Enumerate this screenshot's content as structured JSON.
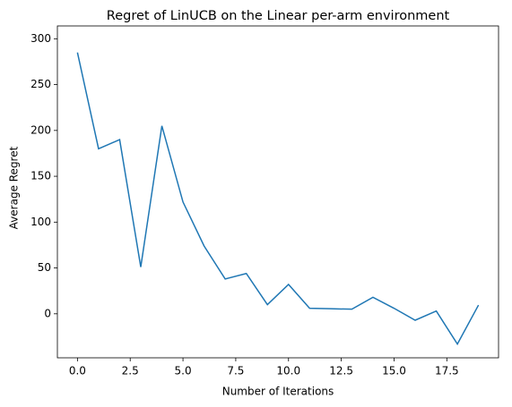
{
  "chart_data": {
    "type": "line",
    "title": "Regret of LinUCB on the Linear per-arm environment",
    "xlabel": "Number of Iterations",
    "ylabel": "Average Regret",
    "x": [
      0,
      1,
      2,
      3,
      4,
      5,
      6,
      7,
      8,
      9,
      10,
      11,
      12,
      13,
      14,
      15,
      16,
      17,
      18,
      19
    ],
    "series": [
      {
        "color": "#1f77b4",
        "values": [
          285,
          180,
          190,
          51,
          205,
          122,
          74,
          38,
          44,
          10,
          32,
          6,
          5.5,
          5,
          18,
          6,
          -7,
          3,
          -33,
          9.5
        ]
      }
    ],
    "xlim": [
      -0.95,
      19.95
    ],
    "ylim": [
      -48,
      314
    ],
    "xticks": [
      {
        "value": 0,
        "label": "0.0"
      },
      {
        "value": 2.5,
        "label": "2.5"
      },
      {
        "value": 5,
        "label": "5.0"
      },
      {
        "value": 7.5,
        "label": "7.5"
      },
      {
        "value": 10,
        "label": "10.0"
      },
      {
        "value": 12.5,
        "label": "12.5"
      },
      {
        "value": 15,
        "label": "15.0"
      },
      {
        "value": 17.5,
        "label": "17.5"
      }
    ],
    "yticks": [
      0,
      50,
      100,
      150,
      200,
      250,
      300
    ]
  }
}
